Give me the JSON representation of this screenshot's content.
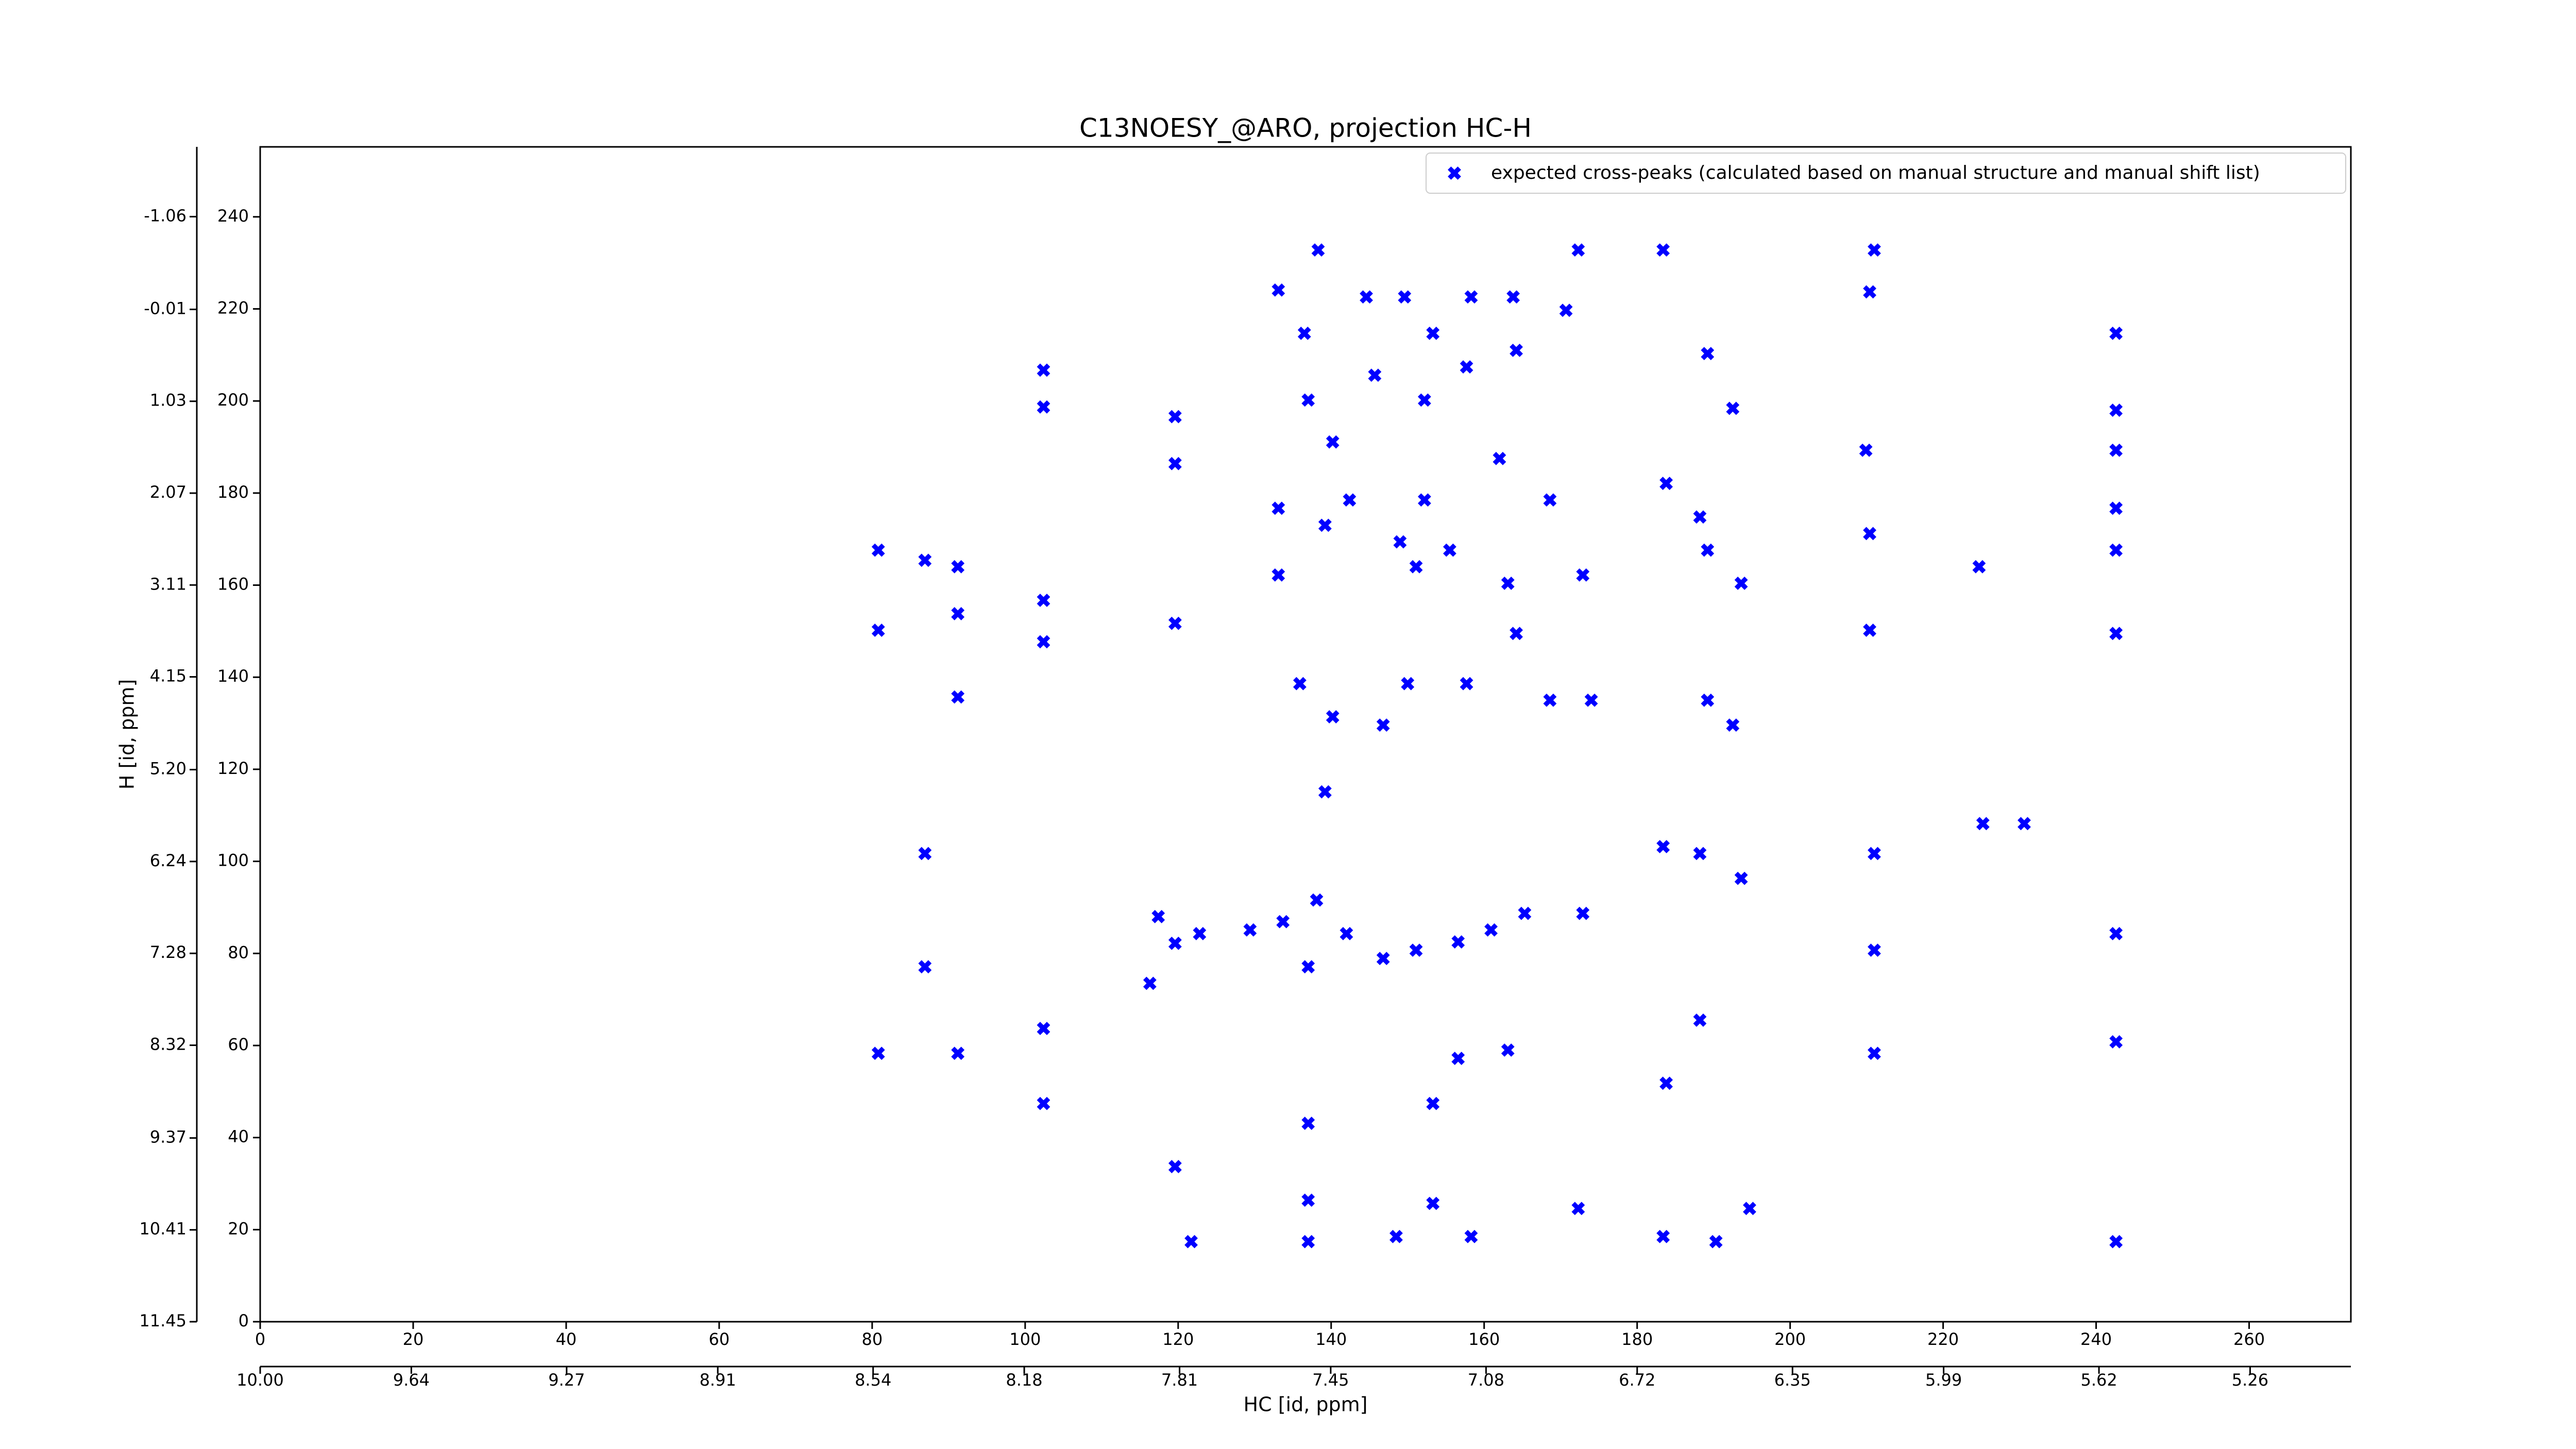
{
  "chart_data": {
    "type": "scatter",
    "title": "C13NOESY_@ARO, projection HC-H",
    "xlabel": "HC [id, ppm]",
    "ylabel": "H [id, ppm]",
    "xlim": [
      0,
      273.3
    ],
    "xticks": [
      0,
      20,
      40,
      60,
      80,
      100,
      120,
      140,
      160,
      180,
      200,
      220,
      240,
      260
    ],
    "x2lim": [
      10,
      5.02
    ],
    "x2ticks": [
      {
        "value": 10,
        "label": "10.00"
      },
      9.64,
      9.27,
      8.91,
      8.54,
      8.18,
      7.81,
      7.45,
      7.08,
      6.72,
      6.35,
      5.99,
      5.62,
      5.26
    ],
    "ylim": [
      0,
      255.2
    ],
    "yticks": [
      0,
      20,
      40,
      60,
      80,
      100,
      120,
      140,
      160,
      180,
      200,
      220,
      240
    ],
    "y2lim": [
      11.45,
      -1.85
    ],
    "y2ticks": [
      11.45,
      10.41,
      9.37,
      8.32,
      7.28,
      6.24,
      {
        "value": 5.2,
        "label": "5.20"
      },
      4.15,
      3.11,
      2.07,
      1.03,
      -0.01,
      -1.06
    ],
    "legend": "upper right",
    "series": [
      {
        "name": "expected cross-peaks (calculated based on manual structure and manual shift list)",
        "color": "#0000ff",
        "x": [
          80.8,
          86.9,
          80.8,
          86.9,
          91.2,
          91.2,
          91.2,
          91.2,
          86.9,
          80.8,
          102.4,
          102.4,
          102.4,
          102.4,
          102.4,
          102.4,
          119.6,
          119.6,
          119.6,
          119.6,
          119.6,
          121.7,
          133.1,
          136.5,
          137.0,
          133.1,
          133.1,
          138.3,
          144.6,
          149.6,
          153.3,
          158.3,
          163.8,
          170.7,
          172.3,
          183.4,
          211.0,
          210.4,
          209.9,
          210.4,
          210.4,
          224.7,
          242.6,
          242.6,
          242.6,
          242.6,
          242.6,
          242.6,
          242.6,
          242.6,
          242.6,
          194.7,
          190.3,
          183.4,
          172.3,
          153.3,
          148.5,
          158.3,
          137.0,
          137.0,
          137.0,
          153.3,
          156.6,
          163.1,
          183.8,
          188.2,
          211.0,
          225.2,
          230.6,
          211.0,
          211.0,
          193.6,
          188.2,
          183.4,
          172.9,
          165.3,
          160.9,
          156.6,
          151.1,
          146.8,
          142.0,
          138.1,
          133.7,
          129.4,
          122.8,
          117.4,
          116.3,
          137.0,
          139.2,
          140.2,
          135.9,
          150.0,
          157.7,
          164.2,
          163.1,
          155.5,
          151.1,
          152.2,
          162.0,
          168.6,
          172.9,
          183.8,
          188.2,
          189.2,
          193.6,
          189.2,
          192.5,
          189.2,
          164.2,
          157.7,
          152.2,
          145.7,
          149.0,
          142.4,
          139.2,
          140.2,
          146.8,
          174.0,
          168.6,
          192.5
        ],
        "values": [
          167.6,
          165.4,
          150.2,
          77.1,
          164.0,
          153.8,
          135.7,
          58.3,
          101.7,
          58.3,
          206.7,
          198.7,
          156.7,
          147.7,
          63.7,
          47.4,
          196.6,
          186.4,
          151.7,
          82.2,
          33.7,
          17.4,
          224.1,
          214.7,
          200.2,
          176.7,
          162.2,
          232.8,
          222.6,
          222.6,
          214.7,
          222.6,
          222.6,
          219.7,
          232.8,
          232.8,
          232.8,
          223.7,
          189.3,
          171.2,
          150.2,
          164.0,
          214.7,
          198.0,
          189.3,
          176.7,
          167.6,
          149.5,
          84.3,
          60.8,
          17.4,
          24.6,
          17.4,
          18.5,
          24.6,
          25.7,
          18.5,
          18.5,
          26.4,
          17.4,
          43.1,
          47.4,
          57.2,
          59.0,
          51.8,
          65.5,
          58.3,
          108.2,
          108.2,
          101.7,
          80.7,
          96.3,
          101.7,
          103.2,
          88.7,
          88.7,
          85.1,
          82.5,
          80.7,
          78.9,
          84.3,
          91.6,
          86.9,
          85.1,
          84.3,
          88.0,
          73.5,
          77.1,
          115.1,
          131.4,
          138.6,
          138.6,
          138.6,
          149.5,
          160.4,
          167.6,
          164.0,
          178.5,
          187.5,
          178.5,
          162.2,
          182.1,
          174.8,
          167.6,
          160.4,
          135.0,
          198.4,
          210.3,
          211.0,
          207.4,
          200.2,
          205.6,
          169.4,
          178.5,
          173.0,
          191.1,
          129.6,
          135.0,
          135.0,
          129.6
        ]
      }
    ]
  }
}
